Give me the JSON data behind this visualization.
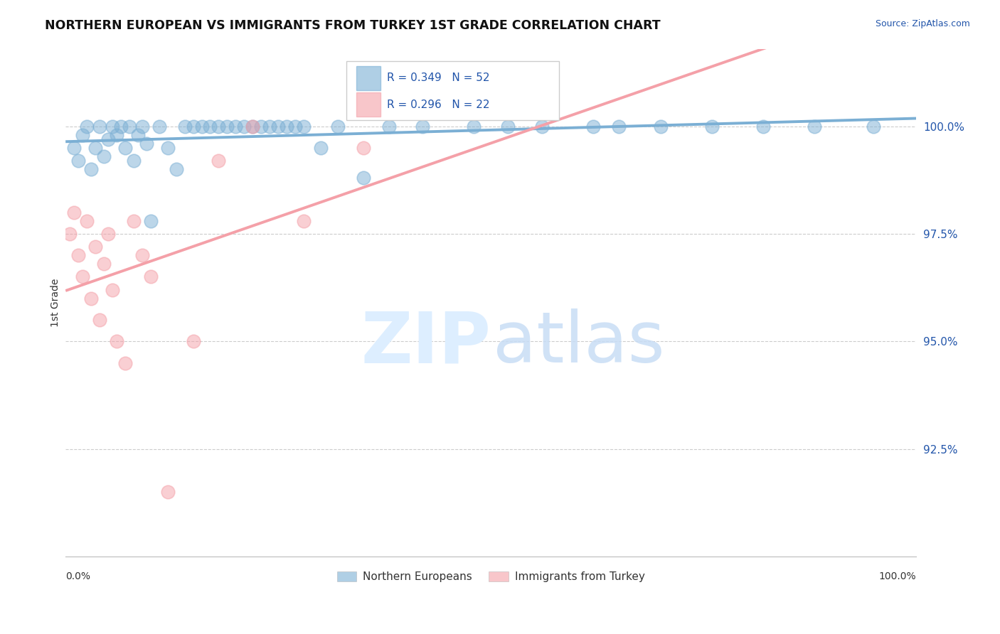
{
  "title": "NORTHERN EUROPEAN VS IMMIGRANTS FROM TURKEY 1ST GRADE CORRELATION CHART",
  "source_text": "Source: ZipAtlas.com",
  "ylabel": "1st Grade",
  "yticks": [
    92.5,
    95.0,
    97.5,
    100.0
  ],
  "ytick_labels": [
    "92.5%",
    "95.0%",
    "97.5%",
    "100.0%"
  ],
  "xlim": [
    0,
    100
  ],
  "ylim": [
    90.0,
    101.8
  ],
  "blue_R": 0.349,
  "blue_N": 52,
  "pink_R": 0.296,
  "pink_N": 22,
  "blue_color": "#7BAFD4",
  "pink_color": "#F4A0A8",
  "blue_label": "Northern Europeans",
  "pink_label": "Immigrants from Turkey",
  "blue_x": [
    1.0,
    1.5,
    2.0,
    2.5,
    3.0,
    3.5,
    4.0,
    4.5,
    5.0,
    5.5,
    6.0,
    6.5,
    7.0,
    7.5,
    8.0,
    8.5,
    9.0,
    9.5,
    10.0,
    11.0,
    12.0,
    13.0,
    14.0,
    15.0,
    16.0,
    17.0,
    18.0,
    19.0,
    20.0,
    21.0,
    22.0,
    23.0,
    24.0,
    25.0,
    26.0,
    27.0,
    28.0,
    30.0,
    32.0,
    35.0,
    38.0,
    42.0,
    48.0,
    52.0,
    56.0,
    62.0,
    65.0,
    70.0,
    76.0,
    82.0,
    88.0,
    95.0
  ],
  "blue_y": [
    99.5,
    99.2,
    99.8,
    100.0,
    99.0,
    99.5,
    100.0,
    99.3,
    99.7,
    100.0,
    99.8,
    100.0,
    99.5,
    100.0,
    99.2,
    99.8,
    100.0,
    99.6,
    97.8,
    100.0,
    99.5,
    99.0,
    100.0,
    100.0,
    100.0,
    100.0,
    100.0,
    100.0,
    100.0,
    100.0,
    100.0,
    100.0,
    100.0,
    100.0,
    100.0,
    100.0,
    100.0,
    99.5,
    100.0,
    98.8,
    100.0,
    100.0,
    100.0,
    100.0,
    100.0,
    100.0,
    100.0,
    100.0,
    100.0,
    100.0,
    100.0,
    100.0
  ],
  "pink_x": [
    0.5,
    1.0,
    1.5,
    2.0,
    2.5,
    3.0,
    3.5,
    4.0,
    4.5,
    5.0,
    5.5,
    6.0,
    7.0,
    8.0,
    9.0,
    10.0,
    12.0,
    15.0,
    18.0,
    22.0,
    28.0,
    35.0
  ],
  "pink_y": [
    97.5,
    98.0,
    97.0,
    96.5,
    97.8,
    96.0,
    97.2,
    95.5,
    96.8,
    97.5,
    96.2,
    95.0,
    94.5,
    97.8,
    97.0,
    96.5,
    91.5,
    95.0,
    99.2,
    100.0,
    97.8,
    99.5
  ]
}
